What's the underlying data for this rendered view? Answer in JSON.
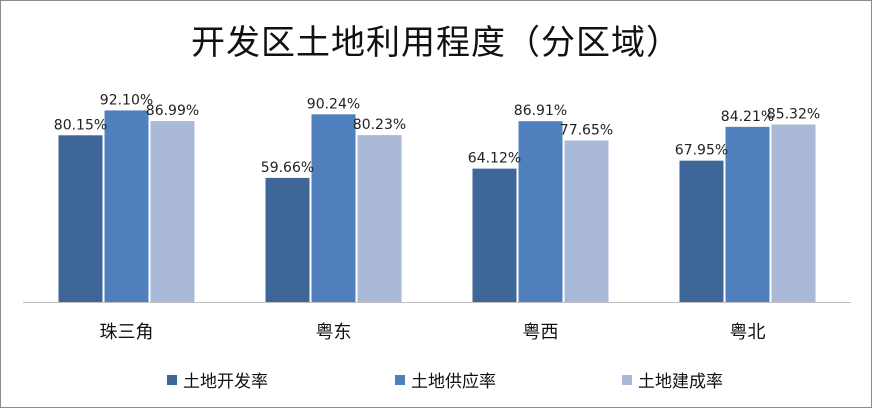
{
  "chart_data": {
    "type": "bar",
    "title": "开发区土地利用程度（分区域）",
    "categories": [
      "珠三角",
      "粤东",
      "粤西",
      "粤北"
    ],
    "series": [
      {
        "name": "土地开发率",
        "color": "#3f6699",
        "values": [
          80.15,
          59.66,
          64.12,
          67.95
        ],
        "labels": [
          "80.15%",
          "59.66%",
          "64.12%",
          "67.95%"
        ]
      },
      {
        "name": "土地供应率",
        "color": "#4f80bd",
        "values": [
          92.1,
          90.24,
          86.91,
          84.21
        ],
        "labels": [
          "92.10%",
          "90.24%",
          "86.91%",
          "84.21%"
        ]
      },
      {
        "name": "土地建成率",
        "color": "#aab9d8",
        "values": [
          86.99,
          80.23,
          77.65,
          85.32
        ],
        "labels": [
          "86.99%",
          "80.23%",
          "77.65%",
          "85.32%"
        ]
      }
    ],
    "xlabel": "",
    "ylabel": "",
    "ylim": [
      0,
      100
    ],
    "grid": false,
    "legend_position": "bottom"
  }
}
